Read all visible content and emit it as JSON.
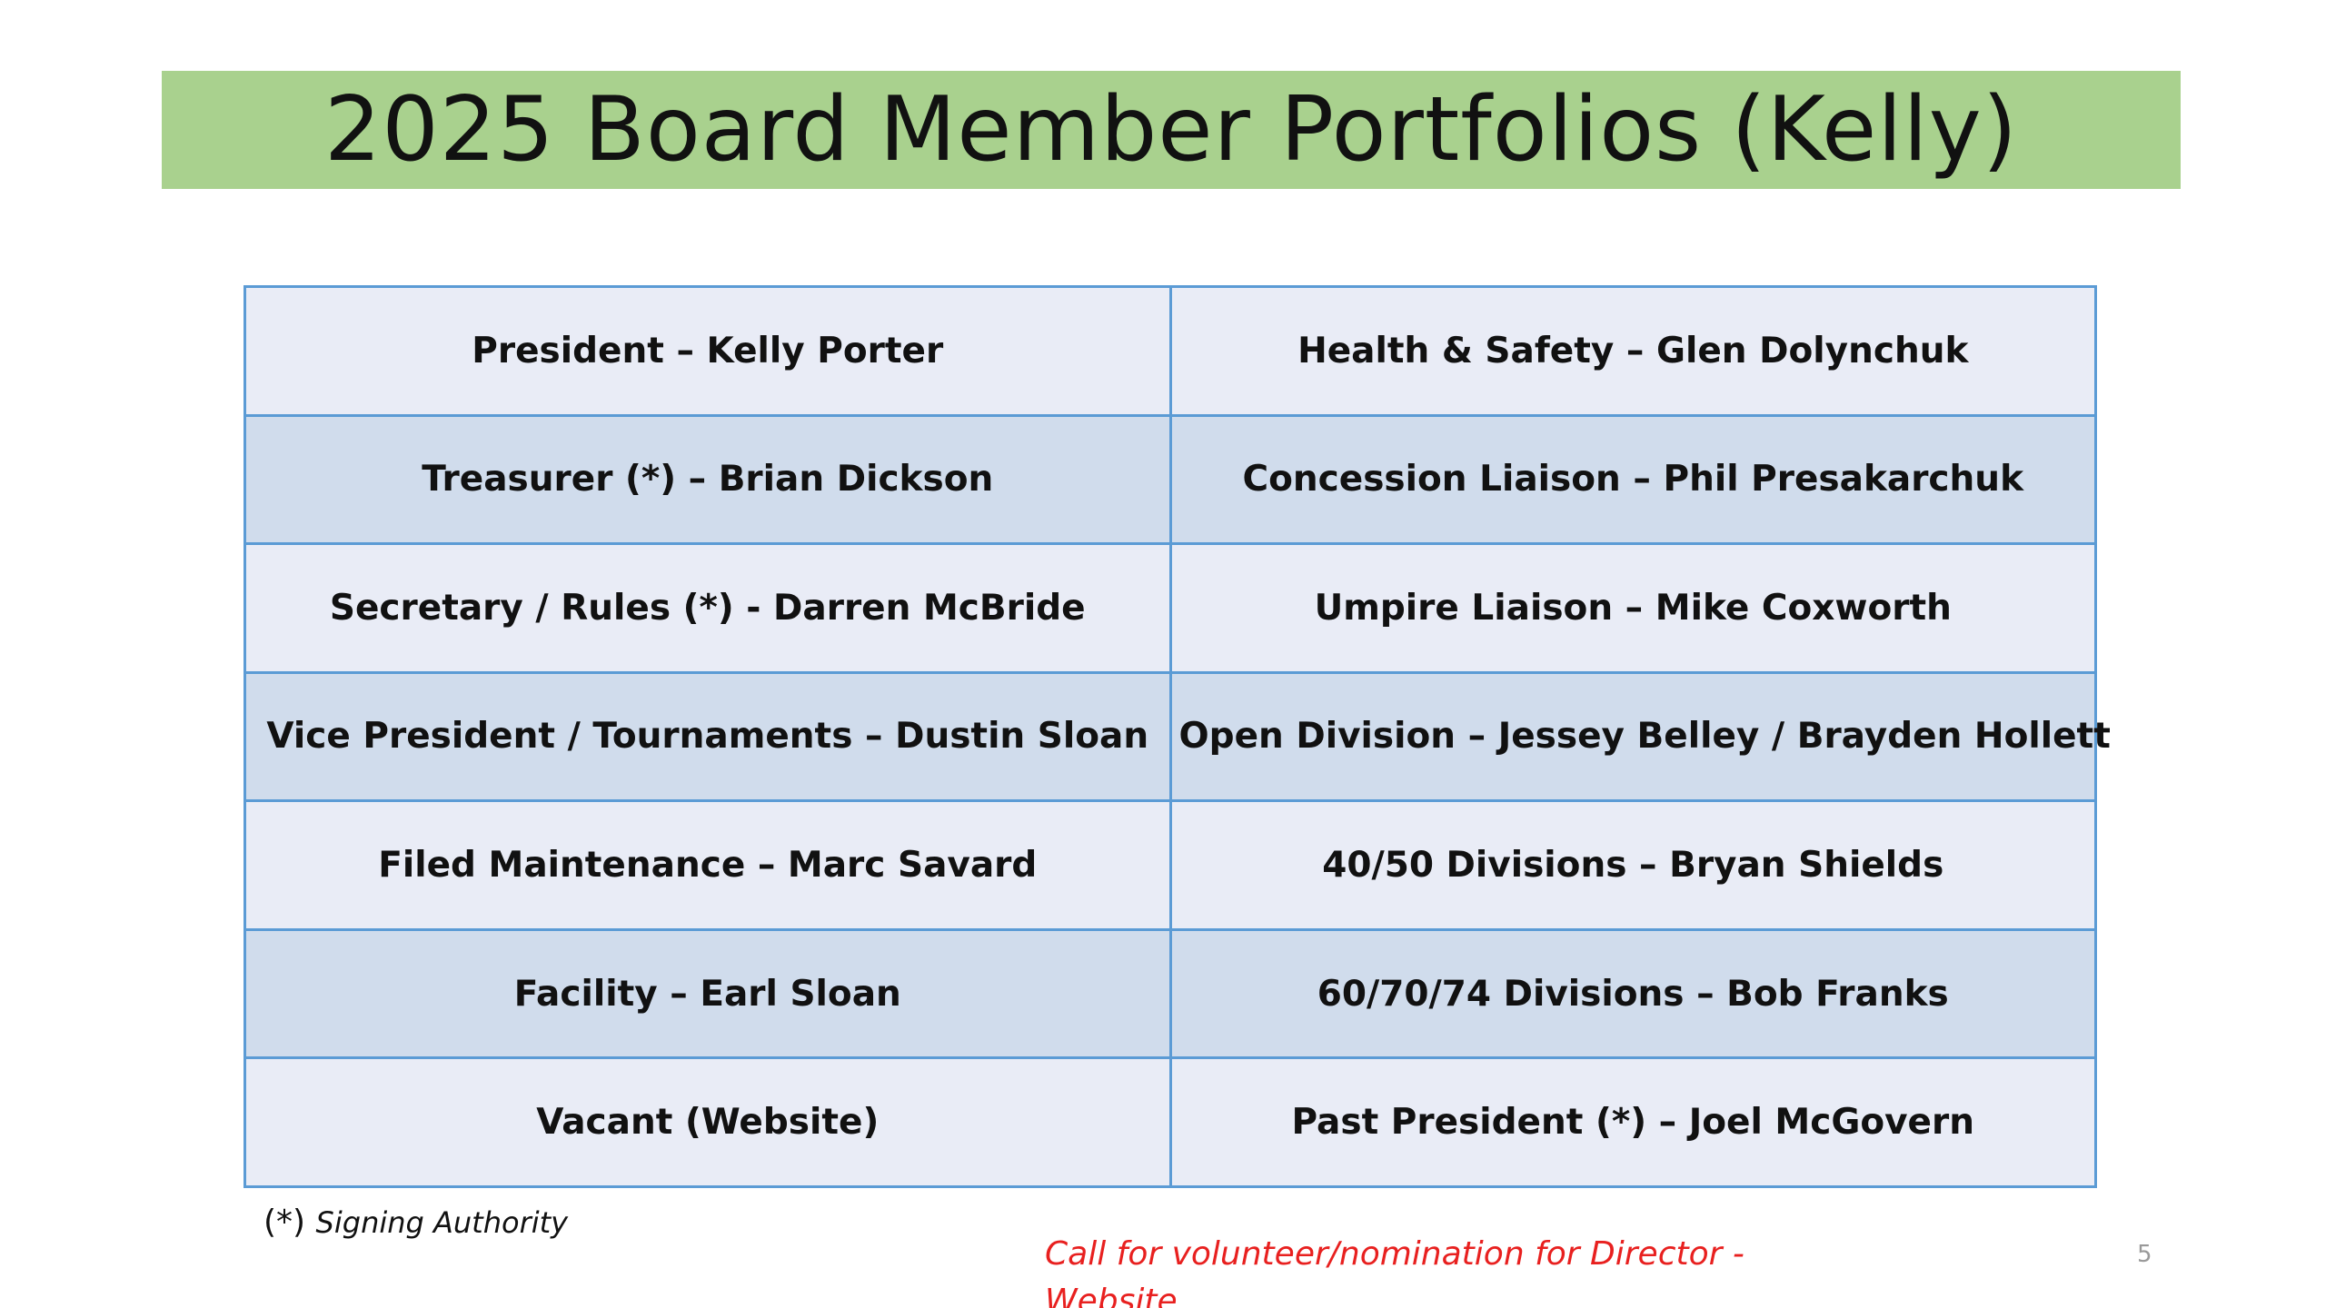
{
  "slide": {
    "title": "2025 Board Member Portfolios (Kelly)",
    "page_number": "5"
  },
  "portfolios": {
    "rows": [
      {
        "left": "President – Kelly Porter",
        "right": "Health & Safety – Glen Dolynchuk"
      },
      {
        "left": "Treasurer (*) – Brian Dickson",
        "right": "Concession Liaison – Phil Presakarchuk"
      },
      {
        "left": "Secretary / Rules (*) - Darren McBride",
        "right": "Umpire Liaison – Mike Coxworth"
      },
      {
        "left": "Vice President / Tournaments – Dustin Sloan",
        "right": "Open Division – Jessey Belley / Brayden Hollett"
      },
      {
        "left": "Filed Maintenance – Marc Savard",
        "right": "40/50 Divisions – Bryan Shields"
      },
      {
        "left": "Facility – Earl Sloan",
        "right": "60/70/74 Divisions – Bob Franks"
      },
      {
        "left": "Vacant (Website)",
        "right": "Past President (*) – Joel McGovern"
      }
    ]
  },
  "footnote": {
    "marker": "(*)",
    "text": "Signing Authority"
  },
  "callout": {
    "line1": "Call for volunteer/nomination for Director -",
    "line2": "Website"
  },
  "colors": {
    "title_bar": "#a9d18e",
    "table_border": "#5b9bd5",
    "row_light": "#e9ecf6",
    "row_dark": "#d0dcec",
    "callout_text": "#e8201f"
  }
}
